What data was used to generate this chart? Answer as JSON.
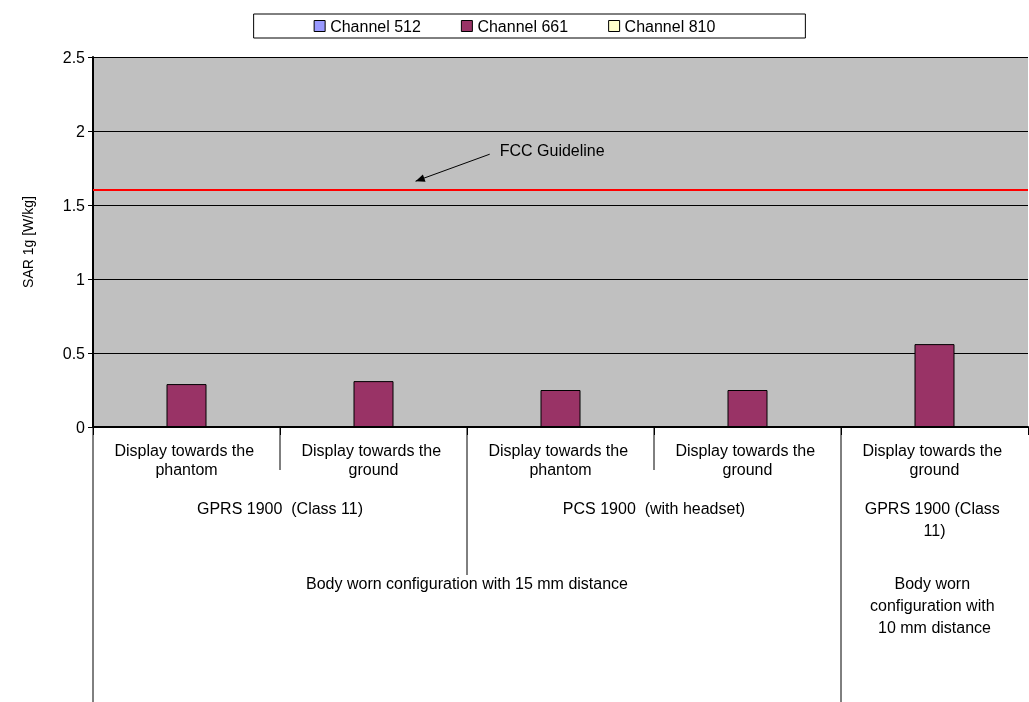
{
  "chart_data": {
    "type": "bar",
    "ylabel": "SAR 1g [W/kg]",
    "categories": [
      "Display towards the phantom",
      "Display towards the ground",
      "Display towards the phantom",
      "Display towards the ground",
      "Display towards the ground"
    ],
    "series": [
      {
        "name": "Channel 512",
        "color": "#9999ff",
        "values": [
          null,
          null,
          null,
          null,
          null
        ]
      },
      {
        "name": "Channel 661",
        "color": "#993366",
        "values": [
          0.29,
          0.31,
          0.25,
          0.25,
          0.56
        ]
      },
      {
        "name": "Channel 810",
        "color": "#ffffcc",
        "values": [
          null,
          null,
          null,
          null,
          null
        ]
      }
    ],
    "ylim": [
      0,
      2.5
    ],
    "yticks": [
      0,
      0.5,
      1,
      1.5,
      2,
      2.5
    ],
    "grid": "y",
    "legend": "top",
    "ref_lines": [
      {
        "axis": "y",
        "value": 1.6,
        "label": "FCC Guideline",
        "color": "#ff0000"
      }
    ],
    "annotations": [
      "GPRS 1900  (Class 11)",
      "PCS 1900  (with headset)",
      "GPRS 1900 (Class 11)",
      "Body worn configuration with 15 mm distance",
      "Body worn configuration with 10 mm distance"
    ]
  }
}
